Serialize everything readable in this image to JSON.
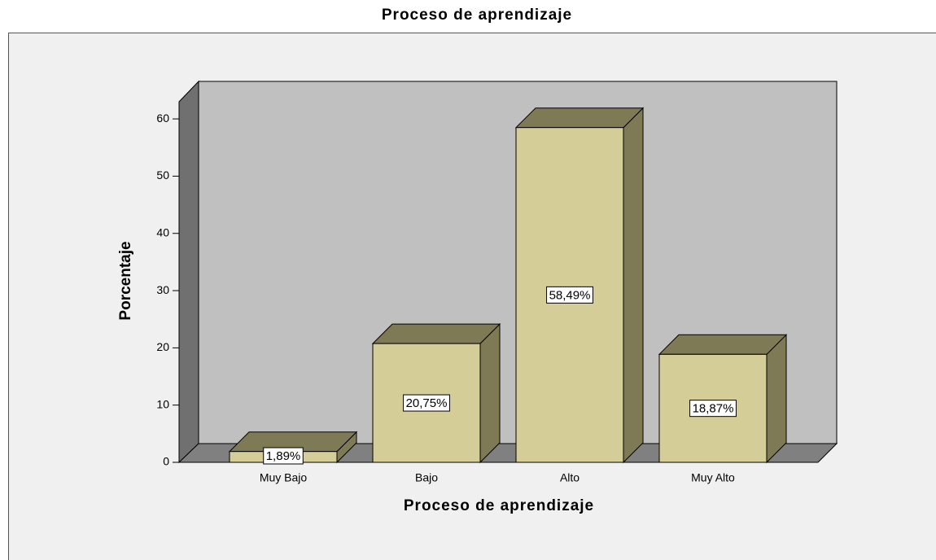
{
  "chart_data": {
    "type": "bar3d",
    "title": "Proceso de aprendizaje",
    "xlabel": "Proceso de aprendizaje",
    "ylabel": "Porcentaje",
    "categories": [
      "Muy Bajo",
      "Bajo",
      "Alto",
      "Muy Alto"
    ],
    "values": [
      1.89,
      20.75,
      58.49,
      18.87
    ],
    "value_labels": [
      "1,89%",
      "20,75%",
      "58,49%",
      "18,87%"
    ],
    "color": "#d4cd97",
    "ylim": [
      0,
      63
    ],
    "yticks": [
      0,
      10,
      20,
      30,
      40,
      50,
      60
    ]
  }
}
